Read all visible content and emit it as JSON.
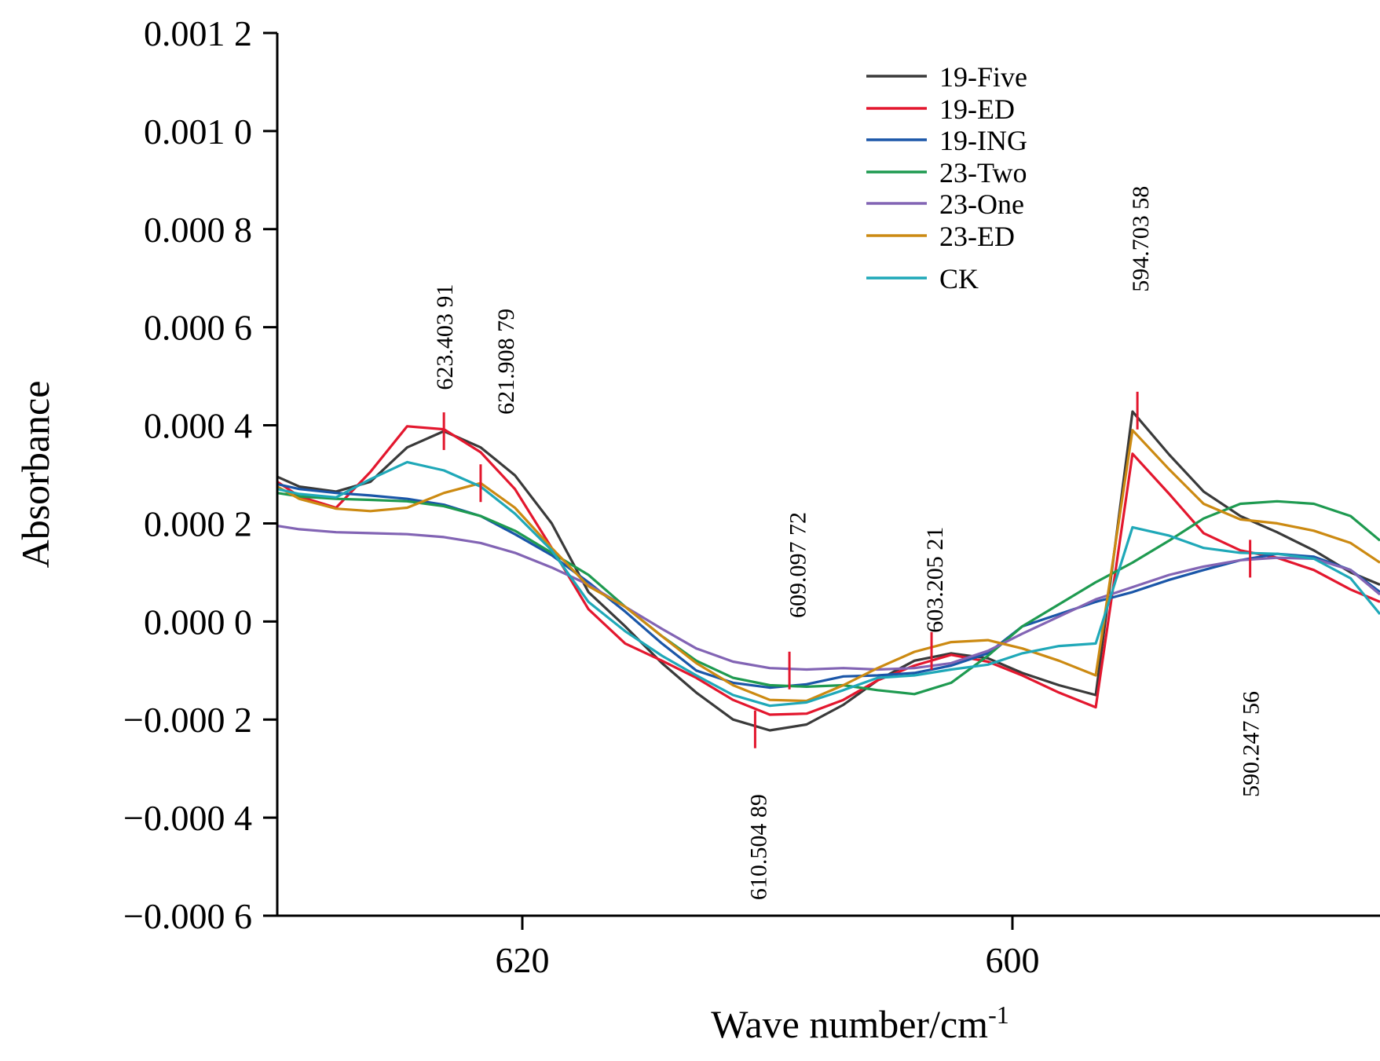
{
  "chart_data": {
    "type": "line",
    "xlabel": "Wave number/cm",
    "xlabel_sup": "-1",
    "ylabel": "Absorbance",
    "xlim": [
      630,
      585
    ],
    "ylim": [
      -0.0006,
      0.0012
    ],
    "x_reversed": true,
    "x_ticks": [
      {
        "value": 620,
        "label": "620"
      },
      {
        "value": 600,
        "label": "600"
      }
    ],
    "y_ticks": [
      {
        "value": 0.0012,
        "label": "0.001 2"
      },
      {
        "value": 0.001,
        "label": "0.001 0"
      },
      {
        "value": 0.0008,
        "label": "0.000 8"
      },
      {
        "value": 0.0006,
        "label": "0.000 6"
      },
      {
        "value": 0.0004,
        "label": "0.000 4"
      },
      {
        "value": 0.0002,
        "label": "0.000 2"
      },
      {
        "value": 0.0,
        "label": "0.000 0"
      },
      {
        "value": -0.0002,
        "label": "−0.000 2"
      },
      {
        "value": -0.0004,
        "label": "−0.000 4"
      },
      {
        "value": -0.0006,
        "label": "−0.000 6"
      }
    ],
    "grid": false,
    "legend_position": "top-center",
    "x": [
      630.0,
      629.1,
      627.6,
      626.2,
      624.7,
      623.2,
      621.7,
      620.3,
      618.8,
      617.3,
      615.8,
      614.3,
      612.9,
      611.4,
      609.9,
      608.4,
      606.9,
      605.5,
      604.0,
      602.5,
      601.0,
      599.6,
      598.1,
      596.6,
      595.1,
      593.6,
      592.2,
      590.7,
      589.2,
      587.7,
      586.2,
      585.0
    ],
    "series": [
      {
        "name": "19-Five",
        "color": "#3a3a3a",
        "values": [
          0.000295,
          0.000275,
          0.000265,
          0.000285,
          0.000355,
          0.000388,
          0.000355,
          0.000298,
          0.0002,
          6e-05,
          -1e-05,
          -8.5e-05,
          -0.000145,
          -0.0002,
          -0.000222,
          -0.00021,
          -0.00017,
          -0.00012,
          -8e-05,
          -6.5e-05,
          -7.5e-05,
          -0.000105,
          -0.00013,
          -0.00015,
          0.000428,
          0.00034,
          0.000265,
          0.000215,
          0.000182,
          0.000145,
          0.0001,
          7.5e-05
        ]
      },
      {
        "name": "19-ED",
        "color": "#e3172e",
        "values": [
          0.000285,
          0.000255,
          0.000232,
          0.000305,
          0.000398,
          0.000392,
          0.000345,
          0.00027,
          0.00015,
          2.5e-05,
          -4.5e-05,
          -8e-05,
          -0.000115,
          -0.00016,
          -0.00019,
          -0.000188,
          -0.00016,
          -0.00012,
          -9e-05,
          -6.8e-05,
          -8.2e-05,
          -0.00011,
          -0.000145,
          -0.000175,
          0.000342,
          0.00026,
          0.00018,
          0.000145,
          0.00013,
          0.000105,
          6.5e-05,
          4e-05
        ]
      },
      {
        "name": "19-ING",
        "color": "#1a56a8",
        "values": [
          0.00028,
          0.00027,
          0.000262,
          0.000257,
          0.00025,
          0.000238,
          0.000215,
          0.000178,
          0.000135,
          8e-05,
          2e-05,
          -4.5e-05,
          -0.0001,
          -0.000125,
          -0.000135,
          -0.000128,
          -0.000112,
          -0.00011,
          -0.000105,
          -9e-05,
          -6.5e-05,
          -1e-05,
          1.5e-05,
          4e-05,
          6e-05,
          8.5e-05,
          0.000105,
          0.000125,
          0.000138,
          0.000132,
          0.000105,
          6e-05
        ]
      },
      {
        "name": "23-Two",
        "color": "#1e9a50",
        "values": [
          0.000262,
          0.000255,
          0.00025,
          0.000248,
          0.000245,
          0.000235,
          0.000215,
          0.000185,
          0.00014,
          9.5e-05,
          3e-05,
          -3e-05,
          -8e-05,
          -0.000115,
          -0.00013,
          -0.000133,
          -0.00013,
          -0.00014,
          -0.000148,
          -0.000125,
          -7e-05,
          -1e-05,
          3.5e-05,
          8e-05,
          0.00012,
          0.000165,
          0.00021,
          0.00024,
          0.000245,
          0.00024,
          0.000215,
          0.000165
        ]
      },
      {
        "name": "23-One",
        "color": "#8264b4",
        "values": [
          0.000195,
          0.000188,
          0.000182,
          0.00018,
          0.000178,
          0.000172,
          0.00016,
          0.00014,
          0.00011,
          7.5e-05,
          3e-05,
          -1.5e-05,
          -5.5e-05,
          -8.2e-05,
          -9.5e-05,
          -9.8e-05,
          -9.5e-05,
          -9.8e-05,
          -9.5e-05,
          -8.5e-05,
          -6e-05,
          -2.5e-05,
          1e-05,
          4.5e-05,
          7e-05,
          9.5e-05,
          0.000112,
          0.000125,
          0.00013,
          0.000128,
          0.000105,
          5.5e-05
        ]
      },
      {
        "name": "23-ED",
        "color": "#cc8a12",
        "values": [
          0.000275,
          0.00025,
          0.00023,
          0.000225,
          0.000232,
          0.000262,
          0.000282,
          0.000232,
          0.00015,
          7.2e-05,
          3e-05,
          -3e-05,
          -8.5e-05,
          -0.00013,
          -0.00016,
          -0.000162,
          -0.00013,
          -9.5e-05,
          -6.2e-05,
          -4.2e-05,
          -3.8e-05,
          -5.5e-05,
          -8e-05,
          -0.00011,
          0.00039,
          0.00031,
          0.00024,
          0.000208,
          0.0002,
          0.000185,
          0.00016,
          0.00012
        ]
      },
      {
        "name": "CK",
        "color": "#1fa8b8",
        "values": [
          0.00027,
          0.00026,
          0.000253,
          0.00029,
          0.000325,
          0.000308,
          0.000275,
          0.00022,
          0.000145,
          4e-05,
          -2e-05,
          -7e-05,
          -0.00011,
          -0.00015,
          -0.000172,
          -0.000165,
          -0.00014,
          -0.000115,
          -0.00011,
          -9.8e-05,
          -8.8e-05,
          -6.5e-05,
          -5e-05,
          -4.5e-05,
          0.000192,
          0.000175,
          0.00015,
          0.00014,
          0.000138,
          0.000128,
          8.8e-05,
          1.5e-05
        ]
      }
    ],
    "peak_marks": [
      {
        "x": 623.2,
        "y": 0.000388,
        "color": "#e3172e"
      },
      {
        "x": 621.7,
        "y": 0.000282,
        "color": "#e3172e"
      },
      {
        "x": 610.5,
        "y": -0.00022,
        "color": "#e3172e"
      },
      {
        "x": 609.1,
        "y": -0.0001,
        "color": "#e3172e"
      },
      {
        "x": 603.3,
        "y": -6e-05,
        "color": "#e3172e"
      },
      {
        "x": 594.9,
        "y": 0.00043,
        "color": "#e3172e"
      },
      {
        "x": 590.3,
        "y": 0.000128,
        "color": "#e3172e"
      }
    ],
    "annotations": [
      {
        "text": "623.403 91",
        "x": 623.2,
        "y": 0.00058
      },
      {
        "text": "621.908 79",
        "x": 620.7,
        "y": 0.00053
      },
      {
        "text": "609.097 72",
        "x": 608.8,
        "y": 0.000115
      },
      {
        "text": "610.504 89",
        "x": 610.4,
        "y": -0.00046
      },
      {
        "text": "603.205 21",
        "x": 603.2,
        "y": 8.5e-05
      },
      {
        "text": "594.703 58",
        "x": 594.8,
        "y": 0.00078
      },
      {
        "text": "590.247 56",
        "x": 590.3,
        "y": -0.00025
      }
    ]
  }
}
